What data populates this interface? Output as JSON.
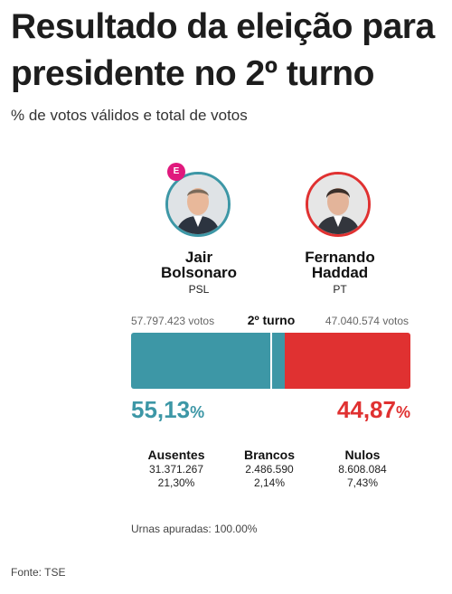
{
  "title": "Resultado da eleição para presidente no 2º turno",
  "subtitle": "% de votos válidos e total de votos",
  "round_label": "2º turno",
  "colors": {
    "candidate_a": "#3d97a6",
    "candidate_b": "#e03131",
    "elected_badge": "#e0197d"
  },
  "candidates": [
    {
      "first": "Jair",
      "last": "Bolsonaro",
      "party": "PSL",
      "votes": "57.797.423 votos",
      "pct": "55,13",
      "pct_sign": "%",
      "badge": "E",
      "photo_icon": "candidate-photo-icon"
    },
    {
      "first": "Fernando",
      "last": "Haddad",
      "party": "PT",
      "votes": "47.040.574 votos",
      "pct": "44,87",
      "pct_sign": "%",
      "photo_icon": "candidate-photo-icon"
    }
  ],
  "stats": [
    {
      "label": "Ausentes",
      "value": "31.371.267",
      "pct": "21,30%"
    },
    {
      "label": "Brancos",
      "value": "2.486.590",
      "pct": "2,14%"
    },
    {
      "label": "Nulos",
      "value": "8.608.084",
      "pct": "7,43%"
    }
  ],
  "apuradas": "Urnas apuradas: 100.00%",
  "fonte": "Fonte: TSE",
  "chart_data": {
    "type": "bar",
    "orientation": "horizontal-stacked",
    "title": "Resultado da eleição para presidente no 2º turno",
    "subtitle": "% de votos válidos e total de votos",
    "categories": [
      "2º turno"
    ],
    "series": [
      {
        "name": "Jair Bolsonaro",
        "values": [
          55.13
        ],
        "votes": [
          57797423
        ],
        "color": "#3d97a6"
      },
      {
        "name": "Fernando Haddad",
        "values": [
          44.87
        ],
        "votes": [
          47040574
        ],
        "color": "#e03131"
      }
    ],
    "midpoint_marker": 50,
    "xlim": [
      0,
      100
    ],
    "grid": false
  }
}
